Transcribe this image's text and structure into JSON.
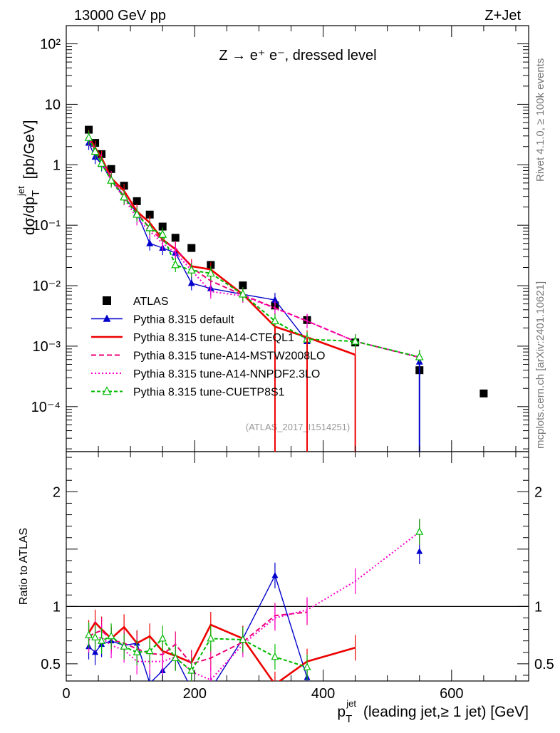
{
  "header": {
    "left": "13000 GeV pp",
    "right": "Z+Jet",
    "process": "Z → e⁺ e⁻, dressed level",
    "side_top": "Rivet 4.1.0, ≥ 100k events",
    "side_bottom": "mcplots.cern.ch [arXiv:2401.10621]",
    "analysis": "(ATLAS_2017_I1514251)"
  },
  "colors": {
    "data": "#000000",
    "default": "#0000cc",
    "cteq": "#ee0000",
    "mstw": "#ee0077",
    "nnpdf": "#ff00cc",
    "cuetp": "#00bb00"
  },
  "chart_data": [
    {
      "type": "scatter",
      "title": "Z → e⁺ e⁻, dressed level",
      "xlabel": "p_T^jet (leading jet, ≥ 1 jet) [GeV]",
      "ylabel": "dσ/dp_T^jet [pb/GeV]",
      "yscale": "log",
      "xlim": [
        0,
        720
      ],
      "ylim": [
        1.8e-05,
        200
      ],
      "y_ticks": [
        "10⁻⁴",
        "10⁻³",
        "10⁻²",
        "10⁻¹",
        "1",
        "10",
        "10²"
      ],
      "legend_position": "lower-left",
      "x": [
        35,
        45,
        55,
        70,
        90,
        110,
        130,
        150,
        170,
        195,
        225,
        275,
        325,
        375,
        450,
        550,
        650
      ],
      "series": [
        {
          "name": "ATLAS",
          "key": "data",
          "marker": "square",
          "values": [
            3.8,
            2.3,
            1.5,
            0.85,
            0.45,
            0.25,
            0.15,
            0.095,
            0.062,
            0.042,
            0.022,
            0.0101,
            0.0047,
            0.0027,
            0.00115,
            0.0004,
            0.000165
          ]
        },
        {
          "name": "Pythia 8.315 default",
          "key": "default",
          "marker": "triangle-filled",
          "dash": "",
          "values": [
            2.3,
            1.35,
            1.02,
            0.57,
            0.3,
            0.16,
            0.05,
            0.042,
            0.035,
            0.011,
            0.009,
            0.0072,
            0.0058,
            0.0012,
            null,
            0.00055,
            null
          ]
        },
        {
          "name": "Pythia 8.315 tune-A14-CTEQL1",
          "key": "cteq",
          "marker": "none",
          "dash": "",
          "values": [
            2.9,
            1.9,
            1.3,
            0.6,
            0.37,
            0.17,
            0.11,
            0.058,
            0.04,
            0.021,
            0.0185,
            0.0072,
            0.0021,
            0.0014,
            0.00072,
            null,
            null
          ]
        },
        {
          "name": "Pythia 8.315 tune-A14-MSTW2008LO",
          "key": "mstw",
          "marker": "none",
          "dash": "7,4",
          "values": [
            2.8,
            1.75,
            1.2,
            0.6,
            0.3,
            0.16,
            0.09,
            0.055,
            0.042,
            0.02,
            0.012,
            0.007,
            0.0043,
            0.0026,
            0.0012,
            0.00065,
            null
          ]
        },
        {
          "name": "Pythia 8.315 tune-A14-NNPDF2.3LO",
          "key": "nnpdf",
          "marker": "none",
          "dash": "2,3",
          "values": [
            2.7,
            1.65,
            1.1,
            0.55,
            0.28,
            0.13,
            0.08,
            0.05,
            0.035,
            0.018,
            0.008,
            0.0068,
            0.0042,
            0.0026,
            0.0012,
            0.00066,
            null
          ]
        },
        {
          "name": "Pythia 8.315 tune-CUETP8S1",
          "key": "cuetp",
          "marker": "triangle-open",
          "dash": "5,3",
          "values": [
            2.8,
            1.65,
            1.05,
            0.55,
            0.29,
            0.15,
            0.09,
            0.07,
            0.022,
            0.018,
            0.016,
            0.0072,
            0.0026,
            0.0013,
            0.0012,
            0.00066,
            null
          ]
        }
      ]
    },
    {
      "type": "line",
      "ylabel": "Ratio to ATLAS",
      "xlabel": "p_T^jet (leading jet, ≥ 1 jet) [GeV]",
      "xlim": [
        0,
        720
      ],
      "ylim": [
        0.35,
        2.35
      ],
      "x_ticks": [
        0,
        200,
        400,
        600
      ],
      "y_ticks": [
        0.5,
        1,
        2
      ],
      "x": [
        35,
        45,
        55,
        70,
        90,
        110,
        130,
        150,
        170,
        195,
        225,
        275,
        325,
        375,
        450,
        550
      ],
      "series": [
        {
          "key": "default",
          "values": [
            0.65,
            0.6,
            0.67,
            0.7,
            0.66,
            0.68,
            0.33,
            0.44,
            0.56,
            0.28,
            0.28,
            0.72,
            1.27,
            0.38,
            null,
            1.48
          ]
        },
        {
          "key": "cteq",
          "values": [
            0.77,
            0.86,
            0.8,
            0.72,
            0.82,
            0.68,
            0.74,
            0.61,
            0.57,
            0.51,
            0.84,
            0.72,
            0.32,
            0.52,
            0.64,
            null
          ]
        },
        {
          "key": "mstw",
          "values": [
            0.74,
            0.77,
            0.79,
            0.71,
            0.68,
            0.63,
            0.59,
            0.58,
            0.67,
            0.5,
            0.55,
            0.69,
            0.92,
            0.95,
            null,
            1.65
          ]
        },
        {
          "key": "nnpdf",
          "values": [
            0.71,
            0.72,
            0.73,
            0.66,
            0.62,
            0.52,
            0.52,
            0.52,
            0.56,
            0.43,
            0.36,
            0.67,
            0.9,
            0.97,
            1.22,
            1.65
          ]
        },
        {
          "key": "cuetp",
          "values": [
            0.75,
            0.73,
            0.7,
            0.74,
            0.65,
            0.6,
            0.61,
            0.72,
            0.55,
            0.44,
            0.72,
            0.71,
            0.56,
            0.47,
            null,
            1.65
          ]
        }
      ]
    }
  ]
}
